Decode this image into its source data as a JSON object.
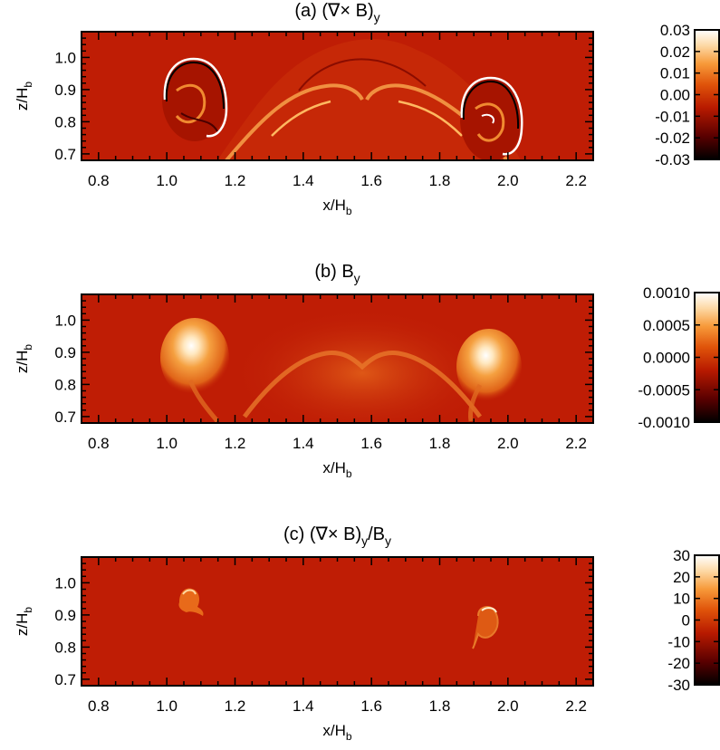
{
  "panels": [
    {
      "title_main": "(a) (∇× B)",
      "title_sub": "y",
      "title_tail": "",
      "title_tail_sub": "",
      "xlabel_main": "x/H",
      "xlabel_sub": "b",
      "ylabel_main": "z/H",
      "ylabel_sub": "b",
      "colorbar_ticks": [
        "0.03",
        "0.02",
        "0.01",
        "0.00",
        "-0.01",
        "-0.02",
        "-0.03"
      ]
    },
    {
      "title_main": "(b) B",
      "title_sub": "y",
      "title_tail": "",
      "title_tail_sub": "",
      "xlabel_main": "x/H",
      "xlabel_sub": "b",
      "ylabel_main": "z/H",
      "ylabel_sub": "b",
      "colorbar_ticks": [
        "0.0010",
        "0.0005",
        "0.0000",
        "-0.0005",
        "-0.0010"
      ]
    },
    {
      "title_main": "(c) (∇× B)",
      "title_sub": "y",
      "title_tail": "/B",
      "title_tail_sub": "y",
      "xlabel_main": "x/H",
      "xlabel_sub": "b",
      "ylabel_main": "z/H",
      "ylabel_sub": "b",
      "colorbar_ticks": [
        "30",
        "20",
        "10",
        "0",
        "-10",
        "-20",
        "-30"
      ]
    }
  ],
  "chart_data": [
    {
      "type": "heatmap",
      "title": "(a) (∇× B)y",
      "xlabel": "x/Hb",
      "ylabel": "z/Hb",
      "xlim": [
        0.75,
        2.25
      ],
      "ylim": [
        0.68,
        1.08
      ],
      "x_ticks": [
        "0.8",
        "1.0",
        "1.2",
        "1.4",
        "1.6",
        "1.8",
        "2.0",
        "2.2"
      ],
      "y_ticks": [
        "0.7",
        "0.8",
        "0.9",
        "1.0"
      ],
      "x_tick_values": [
        0.8,
        1.0,
        1.2,
        1.4,
        1.6,
        1.8,
        2.0,
        2.2
      ],
      "y_tick_values": [
        0.7,
        0.8,
        0.9,
        1.0
      ],
      "colorbar_range": [
        -0.03,
        0.03
      ],
      "colorbar_tick_values": [
        0.03,
        0.02,
        0.01,
        0.0,
        -0.01,
        -0.02,
        -0.03
      ],
      "colormap": "black-red-orange-white"
    },
    {
      "type": "heatmap",
      "title": "(b) By",
      "xlabel": "x/Hb",
      "ylabel": "z/Hb",
      "xlim": [
        0.75,
        2.25
      ],
      "ylim": [
        0.68,
        1.08
      ],
      "x_ticks": [
        "0.8",
        "1.0",
        "1.2",
        "1.4",
        "1.6",
        "1.8",
        "2.0",
        "2.2"
      ],
      "y_ticks": [
        "0.7",
        "0.8",
        "0.9",
        "1.0"
      ],
      "x_tick_values": [
        0.8,
        1.0,
        1.2,
        1.4,
        1.6,
        1.8,
        2.0,
        2.2
      ],
      "y_tick_values": [
        0.7,
        0.8,
        0.9,
        1.0
      ],
      "colorbar_range": [
        -0.001,
        0.001
      ],
      "colorbar_tick_values": [
        0.001,
        0.0005,
        0.0,
        -0.0005,
        -0.001
      ],
      "colormap": "black-red-orange-white"
    },
    {
      "type": "heatmap",
      "title": "(c) (∇× B)y/By",
      "xlabel": "x/Hb",
      "ylabel": "z/Hb",
      "xlim": [
        0.75,
        2.25
      ],
      "ylim": [
        0.68,
        1.08
      ],
      "x_ticks": [
        "0.8",
        "1.0",
        "1.2",
        "1.4",
        "1.6",
        "1.8",
        "2.0",
        "2.2"
      ],
      "y_ticks": [
        "0.7",
        "0.8",
        "0.9",
        "1.0"
      ],
      "x_tick_values": [
        0.8,
        1.0,
        1.2,
        1.4,
        1.6,
        1.8,
        2.0,
        2.2
      ],
      "y_tick_values": [
        0.7,
        0.8,
        0.9,
        1.0
      ],
      "colorbar_range": [
        -30,
        30
      ],
      "colorbar_tick_values": [
        30,
        20,
        10,
        0,
        -10,
        -20,
        -30
      ],
      "colormap": "black-red-orange-white"
    }
  ],
  "colors": {
    "background_field": "#bf1d05",
    "axis": "#000000",
    "gradient_stops": [
      "#000000",
      "#5a0000",
      "#b81a00",
      "#e0540a",
      "#f79a3a",
      "#fdd9a6",
      "#ffffff"
    ]
  }
}
